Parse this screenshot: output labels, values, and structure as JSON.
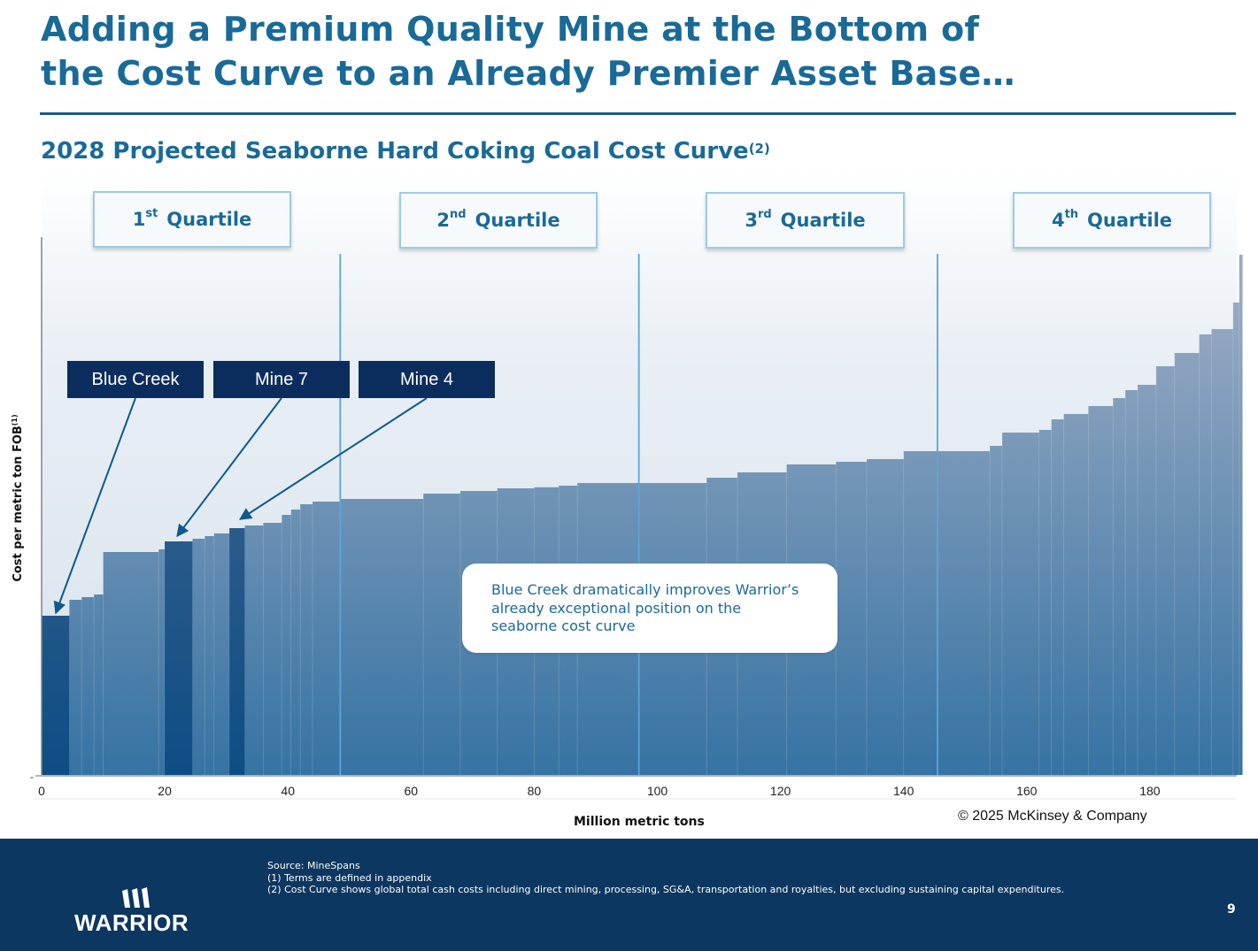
{
  "header": {
    "title_line1": "Adding a Premium Quality Mine at the Bottom of",
    "title_line2": "the Cost Curve to an Already Premier Asset Base…"
  },
  "chart_data": {
    "type": "bar",
    "title": "2028 Projected Seaborne Hard Coking Coal Cost Curve",
    "title_note": "(2)",
    "xlabel": "Million metric tons",
    "ylabel": "Cost per metric ton FOB",
    "ylabel_note": "(1)",
    "y_tick_label": "-",
    "xlim": [
      0,
      194.5
    ],
    "ylim": [
      0,
      100
    ],
    "x_ticks": [
      0,
      20,
      40,
      60,
      80,
      100,
      120,
      140,
      160,
      180
    ],
    "quartile_boundaries": [
      48.5,
      97,
      145.5
    ],
    "quartiles": [
      {
        "num": "1",
        "suffix": "st",
        "word": "Quartile"
      },
      {
        "num": "2",
        "suffix": "nd",
        "word": "Quartile"
      },
      {
        "num": "3",
        "suffix": "rd",
        "word": "Quartile"
      },
      {
        "num": "4",
        "suffix": "th",
        "word": "Quartile"
      }
    ],
    "mines": [
      {
        "label": "Blue Creek",
        "x_start": 0,
        "x_end": 4.5,
        "cost": 30
      },
      {
        "label": "Mine 7",
        "x_start": 20,
        "x_end": 24.5,
        "cost": 44
      },
      {
        "label": "Mine 4",
        "x_start": 30.5,
        "x_end": 33,
        "cost": 46.5
      }
    ],
    "steps": [
      [
        0,
        4.5,
        30
      ],
      [
        4.5,
        6.5,
        33
      ],
      [
        6.5,
        8.5,
        33.5
      ],
      [
        8.5,
        10,
        34
      ],
      [
        10,
        19,
        42
      ],
      [
        19,
        20,
        42.5
      ],
      [
        20,
        24.5,
        44
      ],
      [
        24.5,
        26.5,
        44.5
      ],
      [
        26.5,
        28,
        45
      ],
      [
        28,
        30.5,
        45.5
      ],
      [
        30.5,
        33,
        46.5
      ],
      [
        33,
        36,
        47
      ],
      [
        36,
        39,
        47.5
      ],
      [
        39,
        40.5,
        49
      ],
      [
        40.5,
        42,
        50
      ],
      [
        42,
        44,
        51
      ],
      [
        44,
        48.5,
        51.5
      ],
      [
        48.5,
        62,
        52
      ],
      [
        62,
        68,
        53
      ],
      [
        68,
        74,
        53.5
      ],
      [
        74,
        80,
        54
      ],
      [
        80,
        84,
        54.2
      ],
      [
        84,
        87,
        54.5
      ],
      [
        87,
        97,
        55
      ],
      [
        97,
        108,
        55
      ],
      [
        108,
        113,
        56
      ],
      [
        113,
        121,
        57
      ],
      [
        121,
        129,
        58.5
      ],
      [
        129,
        134,
        59
      ],
      [
        134,
        140,
        59.5
      ],
      [
        140,
        145.5,
        61
      ],
      [
        145.5,
        154,
        61
      ],
      [
        154,
        156,
        62
      ],
      [
        156,
        162,
        64.5
      ],
      [
        162,
        164,
        65
      ],
      [
        164,
        166,
        67
      ],
      [
        166,
        170,
        68
      ],
      [
        170,
        174,
        69.5
      ],
      [
        174,
        176,
        71
      ],
      [
        176,
        178,
        72.5
      ],
      [
        178,
        181,
        73.5
      ],
      [
        181,
        184,
        77
      ],
      [
        184,
        188,
        79.5
      ],
      [
        188,
        190,
        83
      ],
      [
        190,
        193.5,
        84
      ],
      [
        193.5,
        194.5,
        89
      ],
      [
        194.5,
        195,
        98
      ]
    ]
  },
  "callout": {
    "text": "Blue Creek dramatically improves Warrior’s already exceptional position on the seaborne cost curve"
  },
  "copyright": "© 2025 McKinsey & Company",
  "footer": {
    "notes": [
      "Source: MineSpans",
      "(1) Terms are defined in appendix",
      "(2) Cost Curve shows global total cash costs including direct mining, processing, SG&A, transportation and royalties, but excluding sustaining capital expenditures."
    ],
    "logo_text": "WARRIOR",
    "page_number": "9"
  },
  "colors": {
    "title": "#1a6a97",
    "bar_top": "#97a9c2",
    "bar_bottom": "#3673a3",
    "mine_bar": "#2b5b8b",
    "mine_label_bg": "#0b2d5e",
    "footer_bg": "#0c3760"
  }
}
